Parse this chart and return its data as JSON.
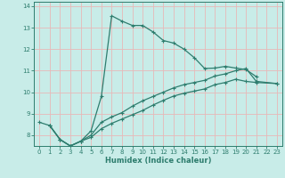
{
  "xlabel": "Humidex (Indice chaleur)",
  "bg_color": "#c8ece8",
  "line_color": "#2e7d6e",
  "grid_color": "#e8b8b8",
  "xlim": [
    -0.5,
    23.5
  ],
  "ylim": [
    7.5,
    14.2
  ],
  "xticks": [
    0,
    1,
    2,
    3,
    4,
    5,
    6,
    7,
    8,
    9,
    10,
    11,
    12,
    13,
    14,
    15,
    16,
    17,
    18,
    19,
    20,
    21,
    22,
    23
  ],
  "yticks": [
    8,
    9,
    10,
    11,
    12,
    13,
    14
  ],
  "curve1_x": [
    0,
    1,
    2,
    3,
    4,
    5,
    6,
    7,
    8,
    9,
    10,
    11,
    12,
    13,
    14,
    15,
    16,
    17,
    18,
    19,
    20,
    21
  ],
  "curve1_y": [
    8.6,
    8.45,
    7.8,
    7.5,
    7.72,
    8.2,
    9.8,
    13.55,
    13.3,
    13.1,
    13.1,
    12.8,
    12.4,
    12.28,
    12.0,
    11.6,
    11.1,
    11.12,
    11.2,
    11.12,
    11.05,
    10.72
  ],
  "curve2_x": [
    1,
    2,
    3,
    4,
    5,
    6,
    7,
    8,
    9,
    10,
    11,
    12,
    13,
    14,
    15,
    16,
    17,
    18,
    19,
    20,
    21,
    23
  ],
  "curve2_y": [
    8.45,
    7.8,
    7.5,
    7.72,
    8.0,
    8.6,
    8.85,
    9.05,
    9.35,
    9.6,
    9.8,
    10.0,
    10.2,
    10.35,
    10.45,
    10.55,
    10.75,
    10.85,
    11.0,
    11.1,
    10.5,
    10.4
  ],
  "curve3_x": [
    1,
    2,
    3,
    4,
    5,
    6,
    7,
    8,
    9,
    10,
    11,
    12,
    13,
    14,
    15,
    16,
    17,
    18,
    19,
    20,
    21,
    23
  ],
  "curve3_y": [
    8.45,
    7.8,
    7.5,
    7.72,
    7.9,
    8.3,
    8.55,
    8.75,
    8.95,
    9.15,
    9.4,
    9.62,
    9.82,
    9.95,
    10.05,
    10.15,
    10.35,
    10.45,
    10.6,
    10.5,
    10.45,
    10.4
  ]
}
